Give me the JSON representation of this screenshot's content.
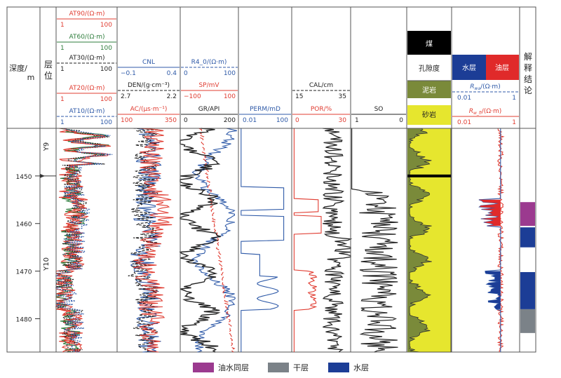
{
  "chart_data": {
    "type": "line",
    "depth_axis": {
      "label_top": "深度/",
      "label_bottom": "m",
      "range": [
        1440,
        1487
      ],
      "ticks": [
        1450,
        1460,
        1470,
        1480
      ]
    },
    "layer_column": {
      "label": "层位",
      "zones": [
        {
          "name": "Y9",
          "top": 1440,
          "bottom": 1450
        },
        {
          "name": "Y10",
          "top": 1450,
          "bottom": 1487
        }
      ]
    },
    "tracks": [
      {
        "id": "res",
        "curves": [
          {
            "name": "AT90/(Ω·m)",
            "color": "#e03c31",
            "min": "1",
            "max": "100"
          },
          {
            "name": "AT60/(Ω·m)",
            "color": "#2e7d3c",
            "min": "1",
            "max": "100"
          },
          {
            "name": "AT30/(Ω·m)",
            "color": "#222222",
            "min": "1",
            "max": "100"
          },
          {
            "name": "AT20/(Ω·m)",
            "color": "#e03c31",
            "min": "1",
            "max": "100"
          },
          {
            "name": "AT10/(Ω·m)",
            "color": "#2f5aa8",
            "min": "1",
            "max": "100"
          }
        ]
      },
      {
        "id": "por",
        "curves": [
          {
            "name": "CNL",
            "color": "#2f5aa8",
            "min": "−0.1",
            "max": "0.4"
          },
          {
            "name": "DEN/(g·cm⁻³)",
            "color": "#222222",
            "min": "2.7",
            "max": "2.2"
          },
          {
            "name": "AC/(μs·m⁻¹)",
            "color": "#e03c31",
            "min": "100",
            "max": "350"
          }
        ]
      },
      {
        "id": "lith",
        "curves": [
          {
            "name": "R4_0/(Ω·m)",
            "color": "#2f5aa8",
            "min": "0",
            "max": "100"
          },
          {
            "name": "SP/mV",
            "color": "#e03c31",
            "min": "−100",
            "max": "100"
          },
          {
            "name": "GR/API",
            "color": "#222222",
            "min": "0",
            "max": "200"
          }
        ]
      },
      {
        "id": "perm",
        "curves": [
          {
            "name": "PERM/mD",
            "color": "#2f5aa8",
            "min": "0.01",
            "max": "100"
          }
        ]
      },
      {
        "id": "calpor",
        "curves": [
          {
            "name": "CAL/cm",
            "color": "#222222",
            "min": "15",
            "max": "35"
          },
          {
            "name": "POR/%",
            "color": "#e03c31",
            "min": "0",
            "max": "30"
          }
        ]
      },
      {
        "id": "so",
        "curves": [
          {
            "name": "SO",
            "color": "#222222",
            "min": "1",
            "max": "0"
          }
        ]
      },
      {
        "id": "litho",
        "legend": [
          {
            "name": "煤",
            "color": "#000000"
          },
          {
            "name": "孔隙度",
            "color": "#ffffff"
          },
          {
            "name": "泥岩",
            "color": "#7a8a3a"
          },
          {
            "name": "砂岩",
            "color": "#e6e62e"
          }
        ]
      },
      {
        "id": "rwa",
        "legend": [
          {
            "name": "水层",
            "color": "#1c3d96"
          },
          {
            "name": "油层",
            "color": "#e02a2a"
          }
        ],
        "curves": [
          {
            "name_main": "R",
            "name_sub": "wa",
            "unit": "/(Ω·m)",
            "color": "#2f5aa8",
            "min": "0.01",
            "max": "1"
          },
          {
            "name_main": "R",
            "name_sub": "w_fi",
            "unit": "/(Ω·m)",
            "color": "#e03c31",
            "min": "0.01",
            "max": "1"
          }
        ]
      }
    ],
    "interpretation": {
      "label": "解释结论",
      "intervals": [
        {
          "type": "油水同层",
          "top": 1455.5,
          "bottom": 1460.5
        },
        {
          "type": "水层",
          "top": 1460.8,
          "bottom": 1465
        },
        {
          "type": "水层",
          "top": 1470.2,
          "bottom": 1478.0
        },
        {
          "type": "干层",
          "top": 1478.0,
          "bottom": 1483.0
        }
      ]
    },
    "legend": [
      {
        "name": "油水同层",
        "color": "#9b3a8f"
      },
      {
        "name": "干层",
        "color": "#7b8288"
      },
      {
        "name": "水层",
        "color": "#1c3d96"
      }
    ]
  }
}
